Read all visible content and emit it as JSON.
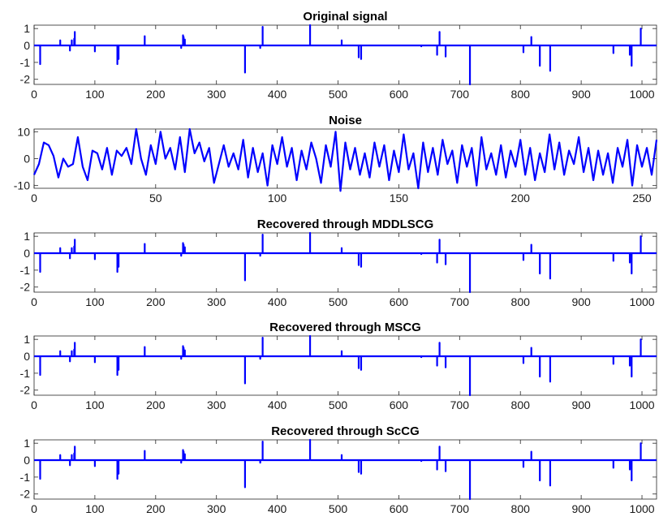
{
  "colors": {
    "series": "#0000ff",
    "axes": "#262626",
    "background": "#ffffff"
  },
  "chart_data": [
    {
      "type": "line",
      "title": "Original signal",
      "xlabel": "",
      "ylabel": "",
      "xlim": [
        0,
        1024
      ],
      "ylim": [
        -2.3,
        1.2
      ],
      "xticks": [
        0,
        100,
        200,
        300,
        400,
        500,
        600,
        700,
        800,
        900,
        1000
      ],
      "yticks": [
        -2,
        -1,
        0,
        1
      ],
      "grid": false,
      "series": [
        {
          "x": [
            10,
            43,
            59,
            62,
            66,
            67,
            100,
            137,
            139,
            182,
            242,
            245,
            246,
            248,
            347,
            372,
            376,
            454,
            506,
            534,
            538,
            637,
            663,
            667,
            677,
            717,
            805,
            818,
            832,
            849,
            953,
            980,
            983,
            998
          ],
          "values": [
            -1.1,
            0.3,
            -0.3,
            0.3,
            0.4,
            0.8,
            -0.35,
            -1.1,
            -0.8,
            0.55,
            -0.15,
            0.6,
            0.5,
            0.35,
            -1.6,
            -0.15,
            1.1,
            1.2,
            0.3,
            -0.7,
            -0.8,
            -0.05,
            -0.55,
            0.8,
            -0.65,
            -2.3,
            -0.4,
            0.5,
            -1.2,
            -1.5,
            -0.45,
            -0.55,
            -1.2,
            1.0
          ]
        }
      ]
    },
    {
      "type": "line",
      "title": "Noise",
      "xlabel": "",
      "ylabel": "",
      "xlim": [
        0,
        256
      ],
      "ylim": [
        -11,
        11
      ],
      "xticks": [
        0,
        50,
        100,
        150,
        200,
        250
      ],
      "yticks": [
        -10,
        0,
        10
      ],
      "grid": false,
      "series": [
        {
          "x": [
            0,
            2,
            4,
            6,
            8,
            10,
            12,
            14,
            16,
            18,
            20,
            22,
            24,
            26,
            28,
            30,
            32,
            34,
            36,
            38,
            40,
            42,
            44,
            46,
            48,
            50,
            52,
            54,
            56,
            58,
            60,
            62,
            64,
            66,
            68,
            70,
            72,
            74,
            76,
            78,
            80,
            82,
            84,
            86,
            88,
            90,
            92,
            94,
            96,
            98,
            100,
            102,
            104,
            106,
            108,
            110,
            112,
            114,
            116,
            118,
            120,
            122,
            124,
            126,
            128,
            130,
            132,
            134,
            136,
            138,
            140,
            142,
            144,
            146,
            148,
            150,
            152,
            154,
            156,
            158,
            160,
            162,
            164,
            166,
            168,
            170,
            172,
            174,
            176,
            178,
            180,
            182,
            184,
            186,
            188,
            190,
            192,
            194,
            196,
            198,
            200,
            202,
            204,
            206,
            208,
            210,
            212,
            214,
            216,
            218,
            220,
            222,
            224,
            226,
            228,
            230,
            232,
            234,
            236,
            238,
            240,
            242,
            244,
            246,
            248,
            250,
            252,
            254,
            256
          ],
          "values": [
            -6,
            -2,
            6,
            5,
            1,
            -7,
            0,
            -3,
            -2,
            8,
            -3,
            -8,
            3,
            2,
            -4,
            4,
            -6,
            3,
            1,
            4,
            -2,
            11,
            0,
            -6,
            5,
            -2,
            10,
            0,
            4,
            -4,
            8,
            -5,
            11,
            2,
            6,
            -1,
            4,
            -9,
            -2,
            5,
            -3,
            2,
            -4,
            7,
            -7,
            4,
            -5,
            2,
            -10,
            5,
            -2,
            8,
            -3,
            4,
            -8,
            3,
            -4,
            6,
            0,
            -9,
            5,
            -3,
            10,
            -12,
            6,
            -4,
            4,
            -6,
            2,
            -7,
            6,
            -3,
            5,
            -8,
            3,
            -5,
            9,
            -4,
            2,
            -11,
            6,
            -5,
            4,
            -6,
            7,
            -2,
            3,
            -9,
            5,
            -3,
            4,
            -10,
            8,
            -4,
            2,
            -6,
            5,
            -7,
            3,
            -3,
            7,
            -6,
            4,
            -8,
            2,
            -5,
            9,
            -4,
            6,
            -6,
            3,
            -2,
            8,
            -5,
            4,
            -8,
            3,
            -6,
            2,
            -9,
            4,
            -3,
            7,
            -10,
            5,
            -3,
            4,
            -6,
            7
          ]
        }
      ]
    },
    {
      "type": "line",
      "title": "Recovered through MDDLSCG",
      "xlabel": "",
      "ylabel": "",
      "xlim": [
        0,
        1024
      ],
      "ylim": [
        -2.3,
        1.2
      ],
      "xticks": [
        0,
        100,
        200,
        300,
        400,
        500,
        600,
        700,
        800,
        900,
        1000
      ],
      "yticks": [
        -2,
        -1,
        0,
        1
      ],
      "grid": false,
      "series": [
        {
          "x": [
            10,
            43,
            59,
            62,
            66,
            67,
            100,
            137,
            139,
            182,
            242,
            245,
            246,
            248,
            347,
            372,
            376,
            454,
            506,
            534,
            538,
            637,
            663,
            667,
            677,
            717,
            805,
            818,
            832,
            849,
            953,
            980,
            983,
            998
          ],
          "values": [
            -1.1,
            0.3,
            -0.3,
            0.3,
            0.4,
            0.8,
            -0.35,
            -1.1,
            -0.8,
            0.55,
            -0.15,
            0.6,
            0.5,
            0.35,
            -1.6,
            -0.15,
            1.1,
            1.2,
            0.3,
            -0.7,
            -0.8,
            -0.05,
            -0.55,
            0.8,
            -0.65,
            -2.3,
            -0.4,
            0.5,
            -1.2,
            -1.5,
            -0.45,
            -0.55,
            -1.2,
            1.0
          ]
        }
      ]
    },
    {
      "type": "line",
      "title": "Recovered through MSCG",
      "xlabel": "",
      "ylabel": "",
      "xlim": [
        0,
        1024
      ],
      "ylim": [
        -2.3,
        1.2
      ],
      "xticks": [
        0,
        100,
        200,
        300,
        400,
        500,
        600,
        700,
        800,
        900,
        1000
      ],
      "yticks": [
        -2,
        -1,
        0,
        1
      ],
      "grid": false,
      "series": [
        {
          "x": [
            10,
            43,
            59,
            62,
            66,
            67,
            100,
            137,
            139,
            182,
            242,
            245,
            246,
            248,
            347,
            372,
            376,
            454,
            506,
            534,
            538,
            637,
            663,
            667,
            677,
            717,
            805,
            818,
            832,
            849,
            953,
            980,
            983,
            998
          ],
          "values": [
            -1.1,
            0.3,
            -0.3,
            0.3,
            0.4,
            0.8,
            -0.35,
            -1.1,
            -0.8,
            0.55,
            -0.15,
            0.6,
            0.5,
            0.35,
            -1.6,
            -0.15,
            1.1,
            1.2,
            0.3,
            -0.7,
            -0.8,
            -0.05,
            -0.55,
            0.8,
            -0.65,
            -2.3,
            -0.4,
            0.5,
            -1.2,
            -1.5,
            -0.45,
            -0.55,
            -1.2,
            1.0
          ]
        }
      ]
    },
    {
      "type": "line",
      "title": "Recovered through ScCG",
      "xlabel": "",
      "ylabel": "",
      "xlim": [
        0,
        1024
      ],
      "ylim": [
        -2.3,
        1.2
      ],
      "xticks": [
        0,
        100,
        200,
        300,
        400,
        500,
        600,
        700,
        800,
        900,
        1000
      ],
      "yticks": [
        -2,
        -1,
        0,
        1
      ],
      "grid": false,
      "series": [
        {
          "x": [
            10,
            43,
            59,
            62,
            66,
            67,
            100,
            137,
            139,
            182,
            242,
            245,
            246,
            248,
            347,
            372,
            376,
            454,
            506,
            534,
            538,
            637,
            663,
            667,
            677,
            717,
            805,
            818,
            832,
            849,
            953,
            980,
            983,
            998
          ],
          "values": [
            -1.1,
            0.3,
            -0.3,
            0.3,
            0.4,
            0.8,
            -0.35,
            -1.1,
            -0.8,
            0.55,
            -0.15,
            0.6,
            0.5,
            0.35,
            -1.6,
            -0.15,
            1.1,
            1.2,
            0.3,
            -0.7,
            -0.8,
            -0.05,
            -0.55,
            0.8,
            -0.65,
            -2.3,
            -0.4,
            0.5,
            -1.2,
            -1.5,
            -0.45,
            -0.55,
            -1.2,
            1.0
          ]
        }
      ]
    }
  ]
}
